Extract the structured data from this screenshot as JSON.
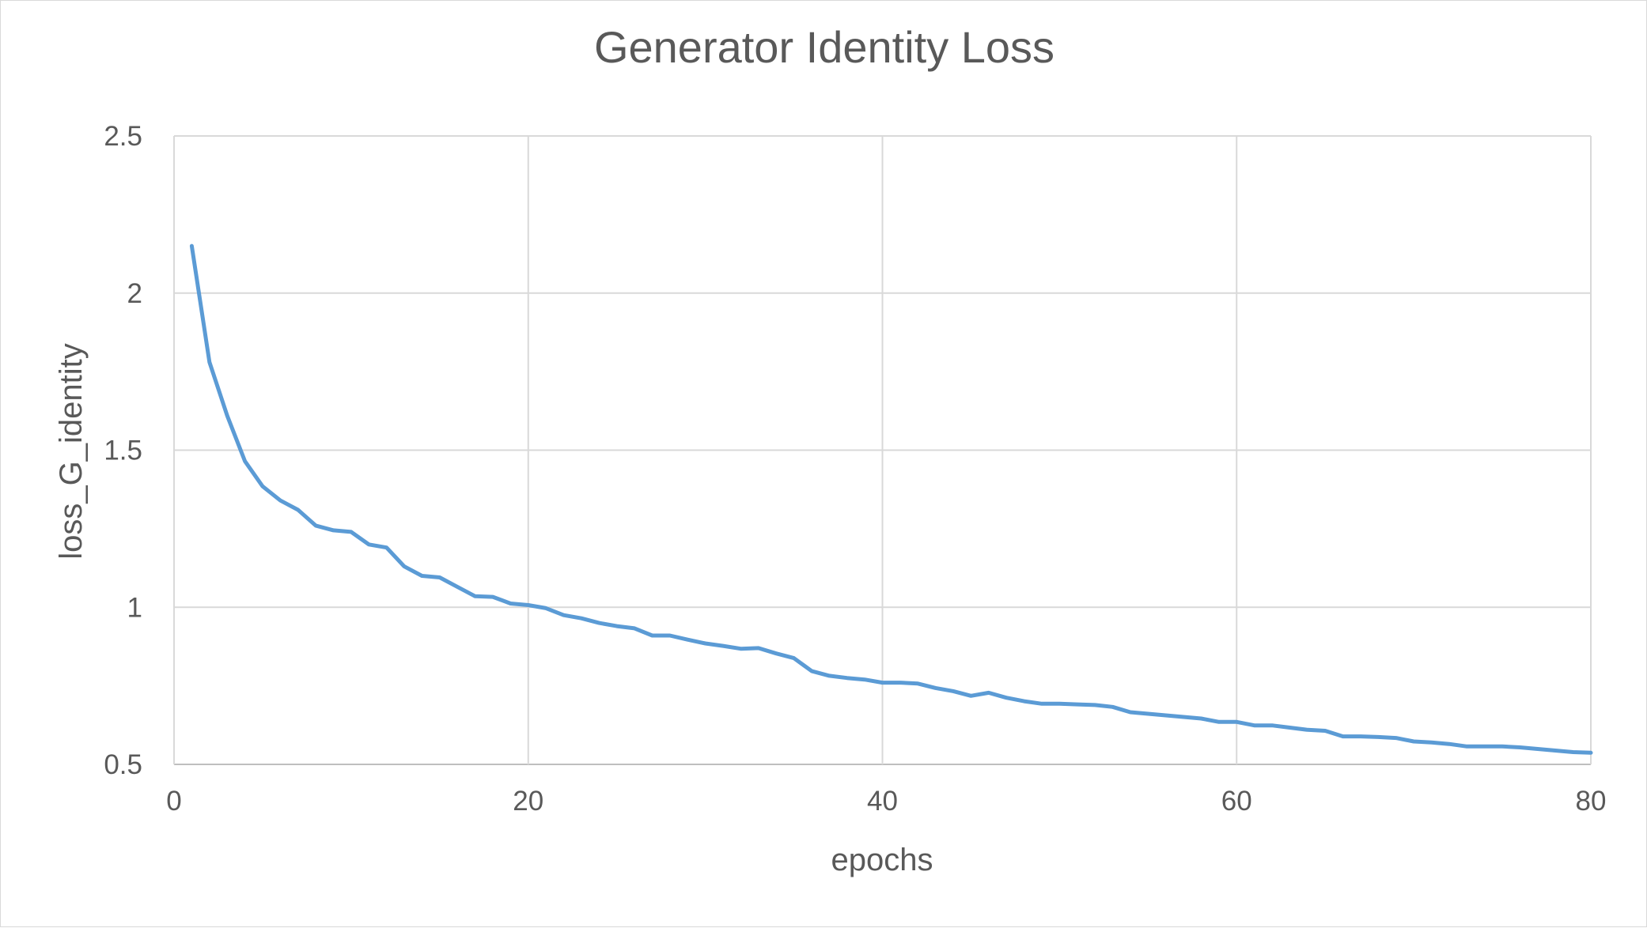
{
  "chart_data": {
    "type": "line",
    "title": "Generator Identity Loss",
    "xlabel": "epochs",
    "ylabel": "loss_G_identity",
    "xlim": [
      0,
      80
    ],
    "ylim": [
      0.5,
      2.5
    ],
    "x_ticks": [
      0,
      20,
      40,
      60,
      80
    ],
    "x_tick_labels": [
      "0",
      "20",
      "40",
      "60",
      "80"
    ],
    "y_ticks": [
      0.5,
      1,
      1.5,
      2,
      2.5
    ],
    "y_tick_labels": [
      "0.5",
      "1",
      "1.5",
      "2",
      "2.5"
    ],
    "grid": true,
    "legend": "none",
    "series": [
      {
        "color": "#5b9bd5",
        "x": [
          1,
          2,
          3,
          4,
          5,
          6,
          7,
          8,
          9,
          10,
          11,
          12,
          13,
          14,
          15,
          16,
          17,
          18,
          19,
          20,
          21,
          22,
          23,
          24,
          25,
          26,
          27,
          28,
          29,
          30,
          31,
          32,
          33,
          34,
          35,
          36,
          37,
          38,
          39,
          40,
          41,
          42,
          43,
          44,
          45,
          46,
          47,
          48,
          49,
          50,
          51,
          52,
          53,
          54,
          55,
          56,
          57,
          58,
          59,
          60,
          61,
          62,
          63,
          64,
          65,
          66,
          67,
          68,
          69,
          70,
          71,
          72,
          73,
          74,
          75,
          76,
          77,
          78,
          79,
          80
        ],
        "y": [
          2.15,
          1.78,
          1.61,
          1.465,
          1.385,
          1.34,
          1.31,
          1.26,
          1.245,
          1.24,
          1.2,
          1.19,
          1.13,
          1.1,
          1.095,
          1.065,
          1.035,
          1.033,
          1.012,
          1.007,
          0.997,
          0.975,
          0.965,
          0.95,
          0.94,
          0.933,
          0.91,
          0.91,
          0.897,
          0.885,
          0.877,
          0.868,
          0.87,
          0.853,
          0.838,
          0.797,
          0.782,
          0.775,
          0.77,
          0.76,
          0.76,
          0.757,
          0.743,
          0.733,
          0.718,
          0.728,
          0.712,
          0.701,
          0.693,
          0.693,
          0.691,
          0.689,
          0.683,
          0.666,
          0.661,
          0.656,
          0.651,
          0.646,
          0.635,
          0.635,
          0.624,
          0.624,
          0.617,
          0.61,
          0.607,
          0.589,
          0.589,
          0.587,
          0.584,
          0.573,
          0.57,
          0.565,
          0.557,
          0.557,
          0.557,
          0.554,
          0.549,
          0.544,
          0.539,
          0.537
        ]
      }
    ]
  }
}
